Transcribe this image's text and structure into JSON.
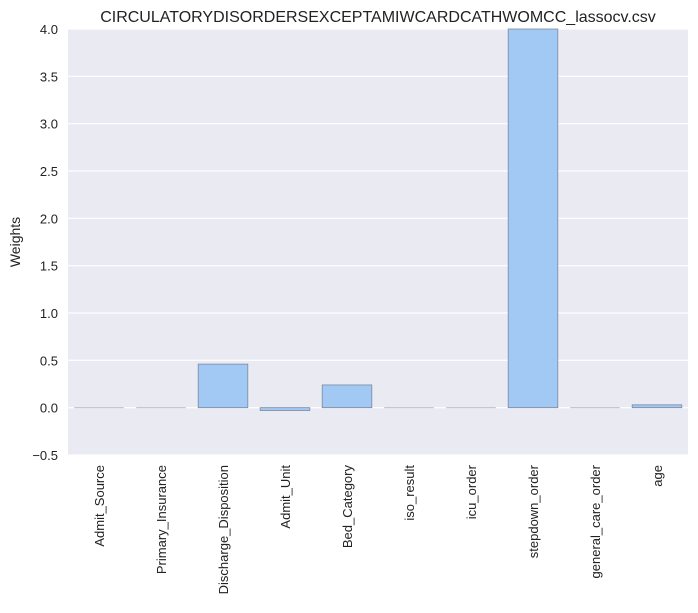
{
  "chart_data": {
    "type": "bar",
    "title": "CIRCULATORYDISORDERSEXCEPTAMIWCARDCATHWOMCC_lassocv.csv",
    "xlabel": "",
    "ylabel": "Weights",
    "categories": [
      "Admit_Source",
      "Primary_Insurance",
      "Discharge_Disposition",
      "Admit_Unit",
      "Bed_Category",
      "iso_result",
      "icu_order",
      "stepdown_order",
      "general_care_order",
      "age"
    ],
    "values": [
      0.0,
      0.0,
      0.46,
      -0.03,
      0.24,
      0.0,
      0.0,
      4.0,
      0.0,
      0.03
    ],
    "ylim": [
      -0.5,
      4.0
    ],
    "yticks": [
      "−0.5",
      "0.0",
      "0.5",
      "1.0",
      "1.5",
      "2.0",
      "2.5",
      "3.0",
      "3.5",
      "4.0"
    ],
    "ytick_values": [
      -0.5,
      0.0,
      0.5,
      1.0,
      1.5,
      2.0,
      2.5,
      3.0,
      3.5,
      4.0
    ],
    "grid": true,
    "legend": "none",
    "colors": {
      "plot_background": "#eaeaf2",
      "grid": "#ffffff",
      "bar_fill": "#a1c9f4",
      "bar_edge": "#7a8aa0",
      "zero_bar_edge": "#bdbdbd"
    }
  }
}
